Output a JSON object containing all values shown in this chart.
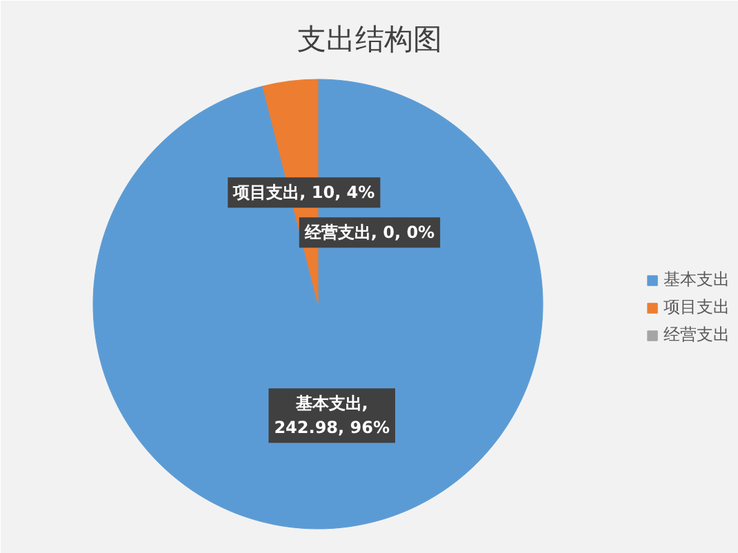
{
  "chart_data": {
    "type": "pie",
    "title": "支出结构图",
    "categories": [
      "基本支出",
      "项目支出",
      "经营支出"
    ],
    "values": [
      242.98,
      10,
      0
    ],
    "colors": [
      "#5b9bd5",
      "#ed7d31",
      "#a5a5a5"
    ],
    "value_labels": [
      "基本支出, 242.98, 96%",
      "项目支出, 10, 4%",
      "经营支出, 0, 0%"
    ],
    "legend": "right"
  }
}
